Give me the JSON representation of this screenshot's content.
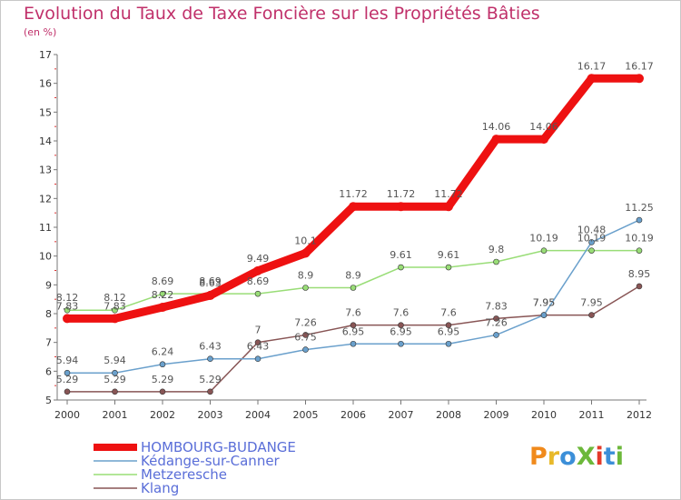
{
  "page": {
    "title": "Evolution du Taux de Taxe Foncière sur les Propriétés Bâties",
    "subtitle": "(en %)",
    "logo_text": "ProXiti",
    "logo_colors": [
      "#f08a1c",
      "#e8b92a",
      "#3c8fd8",
      "#6cb83a",
      "#e33a2a",
      "#3c8fd8",
      "#6cb83a"
    ]
  },
  "chart_data": {
    "type": "line",
    "title": "Evolution du Taux de Taxe Foncière sur les Propriétés Bâties",
    "ylabel": "(en %)",
    "xlabel": "",
    "x": [
      "2000",
      "2001",
      "2002",
      "2003",
      "2004",
      "2005",
      "2006",
      "2007",
      "2008",
      "2009",
      "2010",
      "2011",
      "2012"
    ],
    "ylim": [
      5,
      17
    ],
    "yticks": [
      "5",
      "6",
      "7",
      "8",
      "9",
      "10",
      "11",
      "12",
      "13",
      "14",
      "15",
      "16",
      "17"
    ],
    "grid": false,
    "legend": "bottom-left",
    "series": [
      {
        "name": "HOMBOURG-BUDANGE",
        "color": "#ee1111",
        "values": [
          7.83,
          7.83,
          8.22,
          8.63,
          9.49,
          10.1,
          11.72,
          11.72,
          11.72,
          14.06,
          14.06,
          16.17,
          16.17
        ],
        "labels": [
          "7.83",
          "7.83",
          "8.22",
          "8.63",
          "9.49",
          "10.1",
          "11.72",
          "11.72",
          "11.72",
          "14.06",
          "14.06",
          "16.17",
          "16.17"
        ]
      },
      {
        "name": "Kédange-sur-Canner",
        "color": "#6aa0cc",
        "values": [
          5.94,
          5.94,
          6.24,
          6.43,
          6.43,
          6.75,
          6.95,
          6.95,
          6.95,
          7.26,
          7.95,
          10.48,
          11.25
        ],
        "labels": [
          "5.94",
          "5.94",
          "6.24",
          "6.43",
          "6.43",
          "6.75",
          "6.95",
          "6.95",
          "6.95",
          "7.26",
          "7.95",
          "10.48",
          "11.25"
        ]
      },
      {
        "name": "Metzeresche",
        "color": "#99dd77",
        "values": [
          8.12,
          8.12,
          8.69,
          8.69,
          8.69,
          8.9,
          8.9,
          9.61,
          9.61,
          9.8,
          10.19,
          10.19,
          10.19
        ],
        "labels": [
          "8.12",
          "8.12",
          "8.69",
          "8.69",
          "8.69",
          "8.9",
          "8.9",
          "9.61",
          "9.61",
          "9.8",
          "10.19",
          "10.19",
          "10.19"
        ]
      },
      {
        "name": "Klang",
        "color": "#885555",
        "values": [
          5.29,
          5.29,
          5.29,
          5.29,
          7.0,
          7.26,
          7.6,
          7.6,
          7.6,
          7.83,
          7.95,
          7.95,
          8.95
        ],
        "labels": [
          "5.29",
          "5.29",
          "5.29",
          "5.29",
          "7",
          "7.26",
          "7.6",
          "7.6",
          "7.6",
          "7.83",
          "7.95",
          "7.95",
          "8.95"
        ]
      }
    ]
  }
}
